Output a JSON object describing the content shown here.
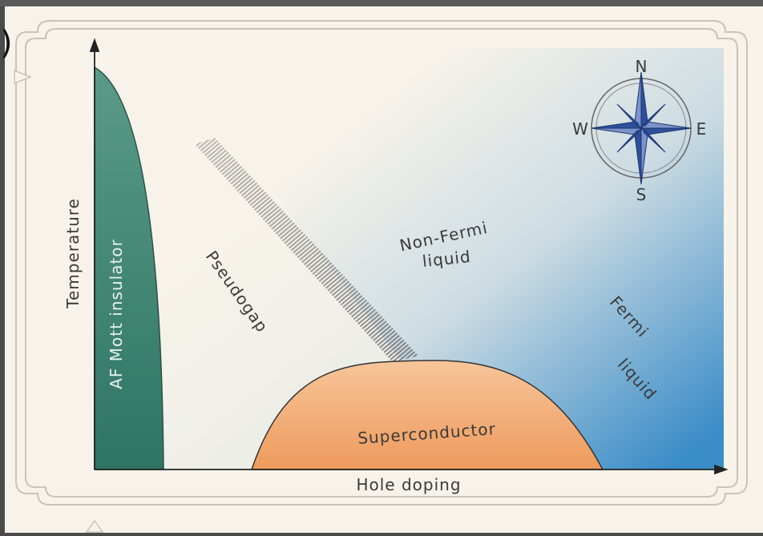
{
  "panel_mark": ")",
  "axes": {
    "x_label": "Hole doping",
    "y_label": "Temperature"
  },
  "regions": {
    "af": "AF Mott insulator",
    "pseudogap": "Pseudogap",
    "non_fermi_line1": "Non-Fermi",
    "non_fermi_line2": "liquid",
    "fermi_line1": "Fermi",
    "fermi_line2": "liquid",
    "superconductor": "Superconductor"
  },
  "compass": {
    "north": "N",
    "south": "S",
    "east": "E",
    "west": "W"
  },
  "colors": {
    "af_fill": "#3f8a78",
    "superconductor_fill": "#f0a46a",
    "fermi_blue": "#3a8cc8",
    "compass_star": "#2f4f9a",
    "paper": "#f7f3ea"
  }
}
